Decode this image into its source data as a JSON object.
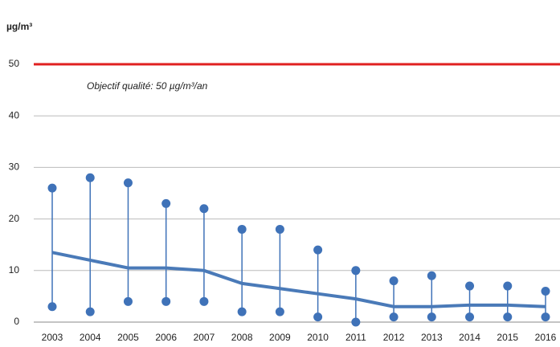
{
  "chart_data": {
    "type": "range",
    "y_label": "µg/m³",
    "categories": [
      "2003",
      "2004",
      "2005",
      "2006",
      "2007",
      "2008",
      "2009",
      "2010",
      "2011",
      "2012",
      "2013",
      "2014",
      "2015",
      "2016"
    ],
    "ranges": {
      "color": "#3f72b8",
      "high": [
        26,
        28,
        27,
        23,
        22,
        18,
        18,
        14,
        10,
        8,
        9,
        7,
        7,
        6
      ],
      "low": [
        3,
        2,
        4,
        4,
        4,
        2,
        2,
        1,
        0,
        1,
        1,
        1,
        1,
        1
      ]
    },
    "line": {
      "color": "#4a7ab8",
      "values": [
        13.5,
        12,
        10.5,
        10.5,
        10,
        7.5,
        6.5,
        5.5,
        4.5,
        3,
        3,
        3.3,
        3.3,
        3
      ]
    },
    "threshold": {
      "value": 50,
      "label": "Objectif qualité: 50 µg/m³/an",
      "color": "#e02020"
    },
    "ylim": [
      0,
      50
    ],
    "yticks": [
      0,
      10,
      20,
      30,
      40,
      50
    ],
    "grid": true
  }
}
